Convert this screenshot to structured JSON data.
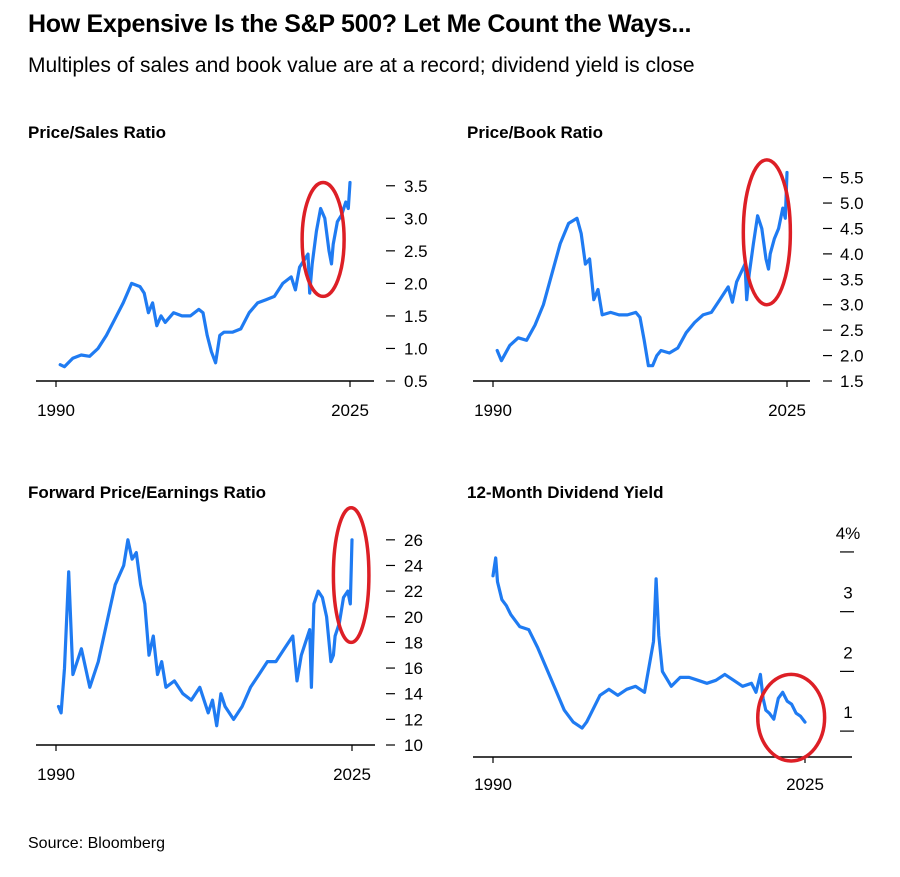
{
  "title": "How Expensive Is the S&P 500? Let Me Count the Ways...",
  "subtitle": "Multiples of sales and book value are at a record; dividend yield is close",
  "source": "Source: Bloomberg",
  "colors": {
    "line": "#1f7bf2",
    "highlight": "#dd1f26",
    "axis": "#000000"
  },
  "chart_data": [
    {
      "type": "line",
      "title": "Price/Sales Ratio",
      "x_tick_labels": [
        "1990",
        "2025"
      ],
      "xlim": [
        1990,
        2025
      ],
      "ylim": [
        0.5,
        3.65
      ],
      "y_ticks": [
        0.5,
        1.0,
        1.5,
        2.0,
        2.5,
        3.0,
        3.5
      ],
      "y_tick_labels": [
        "0.5",
        "1.0",
        "1.5",
        "2.0",
        "2.5",
        "3.0",
        "3.5"
      ],
      "y_axis_side": "right",
      "annotation": "red circle around 2020-2025",
      "highlight": {
        "x_range": [
          2019.3,
          2024.3
        ],
        "y_range": [
          1.8,
          3.55
        ]
      },
      "series": [
        {
          "x": [
            1990.5,
            1991,
            1992,
            1993,
            1994,
            1995,
            1996,
            1997,
            1998,
            1999,
            2000,
            2000.5,
            2001,
            2001.5,
            2002,
            2002.5,
            2003,
            2004,
            2005,
            2006,
            2007,
            2007.5,
            2008,
            2008.5,
            2009,
            2009.5,
            2010,
            2011,
            2012,
            2013,
            2014,
            2015,
            2016,
            2017,
            2018,
            2018.5,
            2019,
            2020,
            2020.2,
            2020.5,
            2021,
            2021.5,
            2022,
            2022.5,
            2022.8,
            2023,
            2023.5,
            2024,
            2024.5,
            2024.8,
            2025
          ],
          "y": [
            0.75,
            0.72,
            0.85,
            0.9,
            0.88,
            1.0,
            1.2,
            1.45,
            1.7,
            2.0,
            1.95,
            1.85,
            1.55,
            1.7,
            1.35,
            1.5,
            1.4,
            1.55,
            1.5,
            1.5,
            1.6,
            1.55,
            1.2,
            0.95,
            0.78,
            1.2,
            1.25,
            1.25,
            1.3,
            1.55,
            1.7,
            1.75,
            1.8,
            2.0,
            2.1,
            1.9,
            2.25,
            2.45,
            1.85,
            2.3,
            2.8,
            3.15,
            3.0,
            2.5,
            2.3,
            2.6,
            2.95,
            3.05,
            3.25,
            3.15,
            3.55
          ]
        }
      ]
    },
    {
      "type": "line",
      "title": "Price/Book Ratio",
      "x_tick_labels": [
        "1990",
        "2025"
      ],
      "xlim": [
        1990,
        2025
      ],
      "ylim": [
        1.5,
        5.65
      ],
      "y_ticks": [
        1.5,
        2.0,
        2.5,
        3.0,
        3.5,
        4.0,
        4.5,
        5.0,
        5.5
      ],
      "y_tick_labels": [
        "1.5",
        "2.0",
        "2.5",
        "3.0",
        "3.5",
        "4.0",
        "4.5",
        "5.0",
        "5.5"
      ],
      "y_axis_side": "right",
      "annotation": "red circle around 2020-2025",
      "highlight": {
        "x_range": [
          2019.8,
          2025.4
        ],
        "y_range": [
          3.0,
          5.85
        ]
      },
      "series": [
        {
          "x": [
            1990.5,
            1991,
            1992,
            1993,
            1994,
            1995,
            1996,
            1997,
            1998,
            1999,
            2000,
            2000.5,
            2001,
            2001.5,
            2002,
            2002.5,
            2003,
            2004,
            2005,
            2006,
            2007,
            2007.5,
            2008,
            2008.5,
            2009,
            2009.5,
            2010,
            2011,
            2012,
            2013,
            2014,
            2015,
            2016,
            2017,
            2018,
            2018.5,
            2019,
            2020,
            2020.2,
            2020.5,
            2021,
            2021.5,
            2022,
            2022.5,
            2022.8,
            2023,
            2023.5,
            2024,
            2024.5,
            2024.8,
            2025
          ],
          "y": [
            2.1,
            1.9,
            2.2,
            2.35,
            2.3,
            2.6,
            3.0,
            3.6,
            4.2,
            4.6,
            4.7,
            4.4,
            3.8,
            3.9,
            3.1,
            3.3,
            2.8,
            2.85,
            2.8,
            2.8,
            2.85,
            2.75,
            2.3,
            1.8,
            1.8,
            2.0,
            2.1,
            2.05,
            2.15,
            2.45,
            2.65,
            2.8,
            2.85,
            3.1,
            3.35,
            3.05,
            3.45,
            3.8,
            3.1,
            3.6,
            4.2,
            4.75,
            4.5,
            3.9,
            3.7,
            4.0,
            4.3,
            4.5,
            4.9,
            4.7,
            5.6
          ]
        }
      ]
    },
    {
      "type": "line",
      "title": "Forward Price/Earnings Ratio",
      "x_tick_labels": [
        "1990",
        "2025"
      ],
      "xlim": [
        1990,
        2025
      ],
      "ylim": [
        10,
        27
      ],
      "y_ticks": [
        10,
        12,
        14,
        16,
        18,
        20,
        22,
        24,
        26
      ],
      "y_tick_labels": [
        "10",
        "12",
        "14",
        "16",
        "18",
        "20",
        "22",
        "24",
        "26"
      ],
      "y_axis_side": "right",
      "annotation": "red circle around 2021-2025",
      "highlight": {
        "x_range": [
          2022.8,
          2027.0
        ],
        "y_range": [
          18.0,
          28.5
        ]
      },
      "series": [
        {
          "x": [
            1990.3,
            1990.6,
            1991,
            1991.5,
            1992,
            1993,
            1994,
            1995,
            1996,
            1997,
            1998,
            1998.5,
            1999,
            1999.5,
            2000,
            2000.5,
            2001,
            2001.5,
            2002,
            2002.5,
            2003,
            2004,
            2005,
            2006,
            2007,
            2008,
            2008.5,
            2009,
            2009.5,
            2010,
            2011,
            2012,
            2013,
            2014,
            2015,
            2016,
            2017,
            2018,
            2018.5,
            2019,
            2020,
            2020.2,
            2020.5,
            2021,
            2021.5,
            2022,
            2022.5,
            2022.8,
            2023,
            2023.5,
            2024,
            2024.5,
            2024.8,
            2025
          ],
          "y": [
            13.0,
            12.5,
            16.0,
            23.5,
            15.5,
            17.5,
            14.5,
            16.5,
            19.5,
            22.5,
            24.0,
            26.0,
            24.5,
            25.0,
            22.5,
            21.0,
            17.0,
            18.5,
            15.5,
            16.5,
            14.5,
            15.0,
            14.0,
            13.5,
            14.5,
            12.5,
            13.5,
            11.5,
            14.0,
            13.0,
            12.0,
            13.0,
            14.5,
            15.5,
            16.5,
            16.5,
            17.5,
            18.5,
            15.0,
            17.0,
            19.0,
            14.5,
            21.0,
            22.0,
            21.5,
            20.0,
            16.5,
            17.0,
            18.5,
            19.5,
            21.5,
            22.0,
            21.0,
            26.0
          ]
        }
      ]
    },
    {
      "type": "line",
      "title": "12-Month Dividend Yield",
      "x_tick_labels": [
        "1990",
        "2025"
      ],
      "xlim": [
        1990,
        2025
      ],
      "ylim": [
        0.65,
        4.2
      ],
      "y_ticks": [
        1,
        2,
        3,
        4
      ],
      "y_tick_labels": [
        "1",
        "2",
        "3",
        "4%"
      ],
      "y_axis_side": "right",
      "annotation": "red circle around 2021-2025",
      "highlight": {
        "x_range": [
          2019.7,
          2027.2
        ],
        "y_range": [
          0.5,
          1.95
        ]
      },
      "series": [
        {
          "x": [
            1990,
            1990.3,
            1990.5,
            1991,
            1991.5,
            1992,
            1993,
            1994,
            1995,
            1996,
            1997,
            1998,
            1999,
            2000,
            2000.5,
            2001,
            2002,
            2003,
            2004,
            2005,
            2006,
            2007,
            2008,
            2008.3,
            2008.6,
            2009,
            2010,
            2011,
            2012,
            2013,
            2014,
            2015,
            2016,
            2017,
            2018,
            2019,
            2019.5,
            2020,
            2020.3,
            2020.6,
            2021,
            2021.5,
            2022,
            2022.5,
            2023,
            2023.5,
            2024,
            2024.5,
            2025
          ],
          "y": [
            3.6,
            3.9,
            3.5,
            3.2,
            3.1,
            2.95,
            2.75,
            2.7,
            2.4,
            2.05,
            1.7,
            1.35,
            1.15,
            1.05,
            1.15,
            1.3,
            1.6,
            1.7,
            1.6,
            1.7,
            1.75,
            1.65,
            2.5,
            3.55,
            2.6,
            2.0,
            1.75,
            1.9,
            1.9,
            1.85,
            1.8,
            1.85,
            1.95,
            1.85,
            1.75,
            1.8,
            1.65,
            1.95,
            1.55,
            1.35,
            1.3,
            1.2,
            1.55,
            1.65,
            1.5,
            1.45,
            1.3,
            1.25,
            1.15
          ]
        }
      ]
    }
  ]
}
